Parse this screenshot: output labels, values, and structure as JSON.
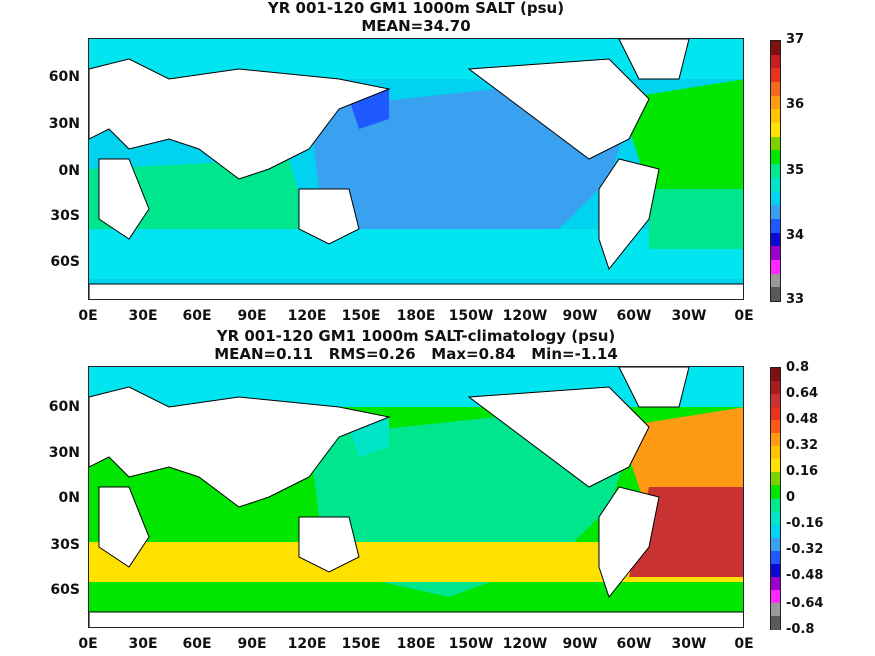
{
  "panels": [
    {
      "title_line1": "YR 001-120 GM1 1000m SALT (psu)",
      "title_line2": "MEAN=34.70",
      "lat_labels": [
        "60N",
        "30N",
        "0N",
        "30S",
        "60S"
      ],
      "lon_labels": [
        "0E",
        "30E",
        "60E",
        "90E",
        "120E",
        "150E",
        "180E",
        "150W",
        "120W",
        "90W",
        "60W",
        "30W",
        "0E"
      ],
      "colorbar": {
        "labels": [
          "37",
          "36",
          "35",
          "34",
          "33"
        ],
        "colors": [
          "#7f1010",
          "#c81e1e",
          "#e8321e",
          "#f26a1e",
          "#ff9a14",
          "#ffc400",
          "#ffe100",
          "#7ad200",
          "#00e600",
          "#00e68c",
          "#00e5c8",
          "#00d2f0",
          "#3aa0f0",
          "#1e5aff",
          "#0a0ad2",
          "#9b00c8",
          "#ff28ff",
          "#9a9a9a",
          "#5a5a5a"
        ]
      },
      "palette": {
        "arctic": "#00e5f0",
        "pacific": "#3aa0f0",
        "pacific_deep": "#1e5aff",
        "southern": "#00e5f0",
        "indian": "#00e68c",
        "atlantic_n": "#00e600",
        "atlantic_s": "#00e68c",
        "mid": "#00d2f0"
      }
    },
    {
      "title_line1": "YR 001-120 GM1 1000m SALT-climatology (psu)",
      "title_line2": "MEAN=0.11   RMS=0.26   Max=0.84   Min=-1.14",
      "lat_labels": [
        "60N",
        "30N",
        "0N",
        "30S",
        "60S"
      ],
      "lon_labels": [
        "0E",
        "30E",
        "60E",
        "90E",
        "120E",
        "150E",
        "180E",
        "150W",
        "120W",
        "90W",
        "60W",
        "30W",
        "0E"
      ],
      "colorbar": {
        "labels": [
          "0.8",
          "0.64",
          "0.48",
          "0.32",
          "0.16",
          "0",
          "-0.16",
          "-0.32",
          "-0.48",
          "-0.64",
          "-0.8"
        ],
        "colors": [
          "#7f1010",
          "#a81e1e",
          "#c83232",
          "#e8321e",
          "#ff5a14",
          "#ff9a14",
          "#ffc400",
          "#ffe100",
          "#7ad200",
          "#00e600",
          "#00e68c",
          "#00e5c8",
          "#00d2f0",
          "#3aa0f0",
          "#1e5aff",
          "#0a0ad2",
          "#9b00c8",
          "#ff28ff",
          "#9a9a9a",
          "#5a5a5a"
        ]
      },
      "palette": {
        "arctic": "#00e5f0",
        "pacific": "#00e68c",
        "pacific_deep": "#00e5c8",
        "southern": "#ffe100",
        "indian": "#00e600",
        "atlantic_n": "#ff9a14",
        "atlantic_s": "#c83232",
        "mid": "#00e600"
      }
    }
  ]
}
